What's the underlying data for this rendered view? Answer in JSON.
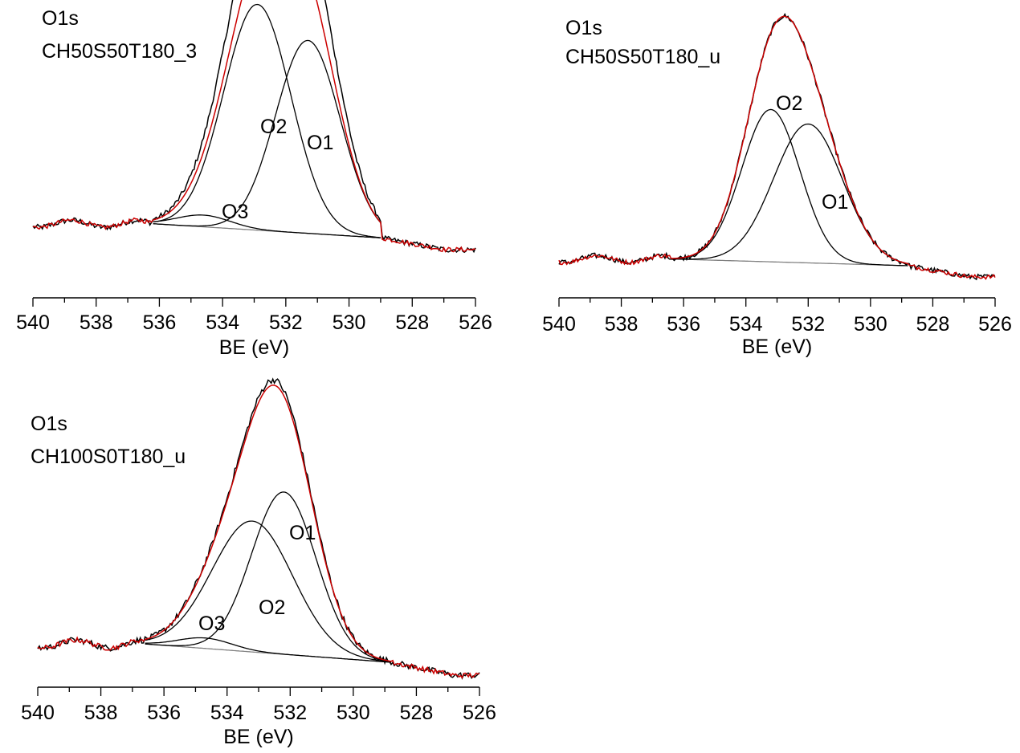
{
  "colors": {
    "measured": "#000000",
    "envelope": "#cc0000",
    "component": "#000000",
    "background": "#808080"
  },
  "chart_data": [
    {
      "type": "line",
      "title": "O1s",
      "subtitle": "CH50S50T180_3",
      "xlabel": "BE (eV)",
      "ylabel": "",
      "x_reversed": true,
      "xlim": [
        540,
        526
      ],
      "xticks": [
        "540",
        "538",
        "536",
        "534",
        "532",
        "530",
        "528",
        "526"
      ],
      "y_axis_shown": false,
      "grid": false,
      "baseline_level": 0.04,
      "background_range": [
        536.2,
        529.0
      ],
      "background_levels": [
        0.1,
        0.04
      ],
      "peaks": [
        {
          "name": "O1",
          "center": 531.3,
          "height": 0.82,
          "fwhm": 2.4
        },
        {
          "name": "O2",
          "center": 532.9,
          "height": 0.96,
          "fwhm": 2.5
        },
        {
          "name": "O3",
          "center": 534.6,
          "height": 0.05,
          "fwhm": 2.0
        }
      ],
      "data_max_normalized": 1.19,
      "series": [
        {
          "name": "",
          "role": "measured data"
        },
        {
          "name": "",
          "role": "fit envelope"
        },
        {
          "name": "",
          "role": "component peaks"
        },
        {
          "name": "",
          "role": "background"
        }
      ]
    },
    {
      "type": "line",
      "title": "O1s",
      "subtitle": "CH50S50T180_u",
      "xlabel": "BE (eV)",
      "ylabel": "",
      "x_reversed": true,
      "xlim": [
        540,
        526
      ],
      "xticks": [
        "540",
        "538",
        "536",
        "534",
        "532",
        "530",
        "528",
        "526"
      ],
      "y_axis_shown": false,
      "grid": false,
      "baseline_level": 0.03,
      "background_range": [
        536.4,
        528.8
      ],
      "background_levels": [
        0.03,
        0.0
      ],
      "peaks": [
        {
          "name": "O1",
          "center": 532.0,
          "height": 0.62,
          "fwhm": 2.6
        },
        {
          "name": "O2",
          "center": 533.2,
          "height": 0.68,
          "fwhm": 2.2
        }
      ],
      "data_max_normalized": 1.0,
      "series": [
        {
          "name": "",
          "role": "measured data"
        },
        {
          "name": "",
          "role": "fit envelope"
        },
        {
          "name": "",
          "role": "component peaks"
        },
        {
          "name": "",
          "role": "background"
        }
      ]
    },
    {
      "type": "line",
      "title": "O1s",
      "subtitle": "CH100S0T180_u",
      "xlabel": "BE (eV)",
      "ylabel": "",
      "x_reversed": true,
      "xlim": [
        540,
        526
      ],
      "xticks": [
        "540",
        "538",
        "536",
        "534",
        "532",
        "530",
        "528",
        "526"
      ],
      "y_axis_shown": false,
      "grid": false,
      "baseline_level": 0.07,
      "background_range": [
        536.6,
        528.8
      ],
      "background_levels": [
        0.07,
        0.0
      ],
      "peaks": [
        {
          "name": "O1",
          "center": 532.2,
          "height": 0.62,
          "fwhm": 2.4
        },
        {
          "name": "O2",
          "center": 533.2,
          "height": 0.5,
          "fwhm": 3.0
        },
        {
          "name": "O3",
          "center": 534.7,
          "height": 0.04,
          "fwhm": 2.0
        }
      ],
      "data_max_normalized": 1.02,
      "series": [
        {
          "name": "",
          "role": "measured data"
        },
        {
          "name": "",
          "role": "fit envelope"
        },
        {
          "name": "",
          "role": "component peaks"
        },
        {
          "name": "",
          "role": "background"
        }
      ]
    }
  ]
}
